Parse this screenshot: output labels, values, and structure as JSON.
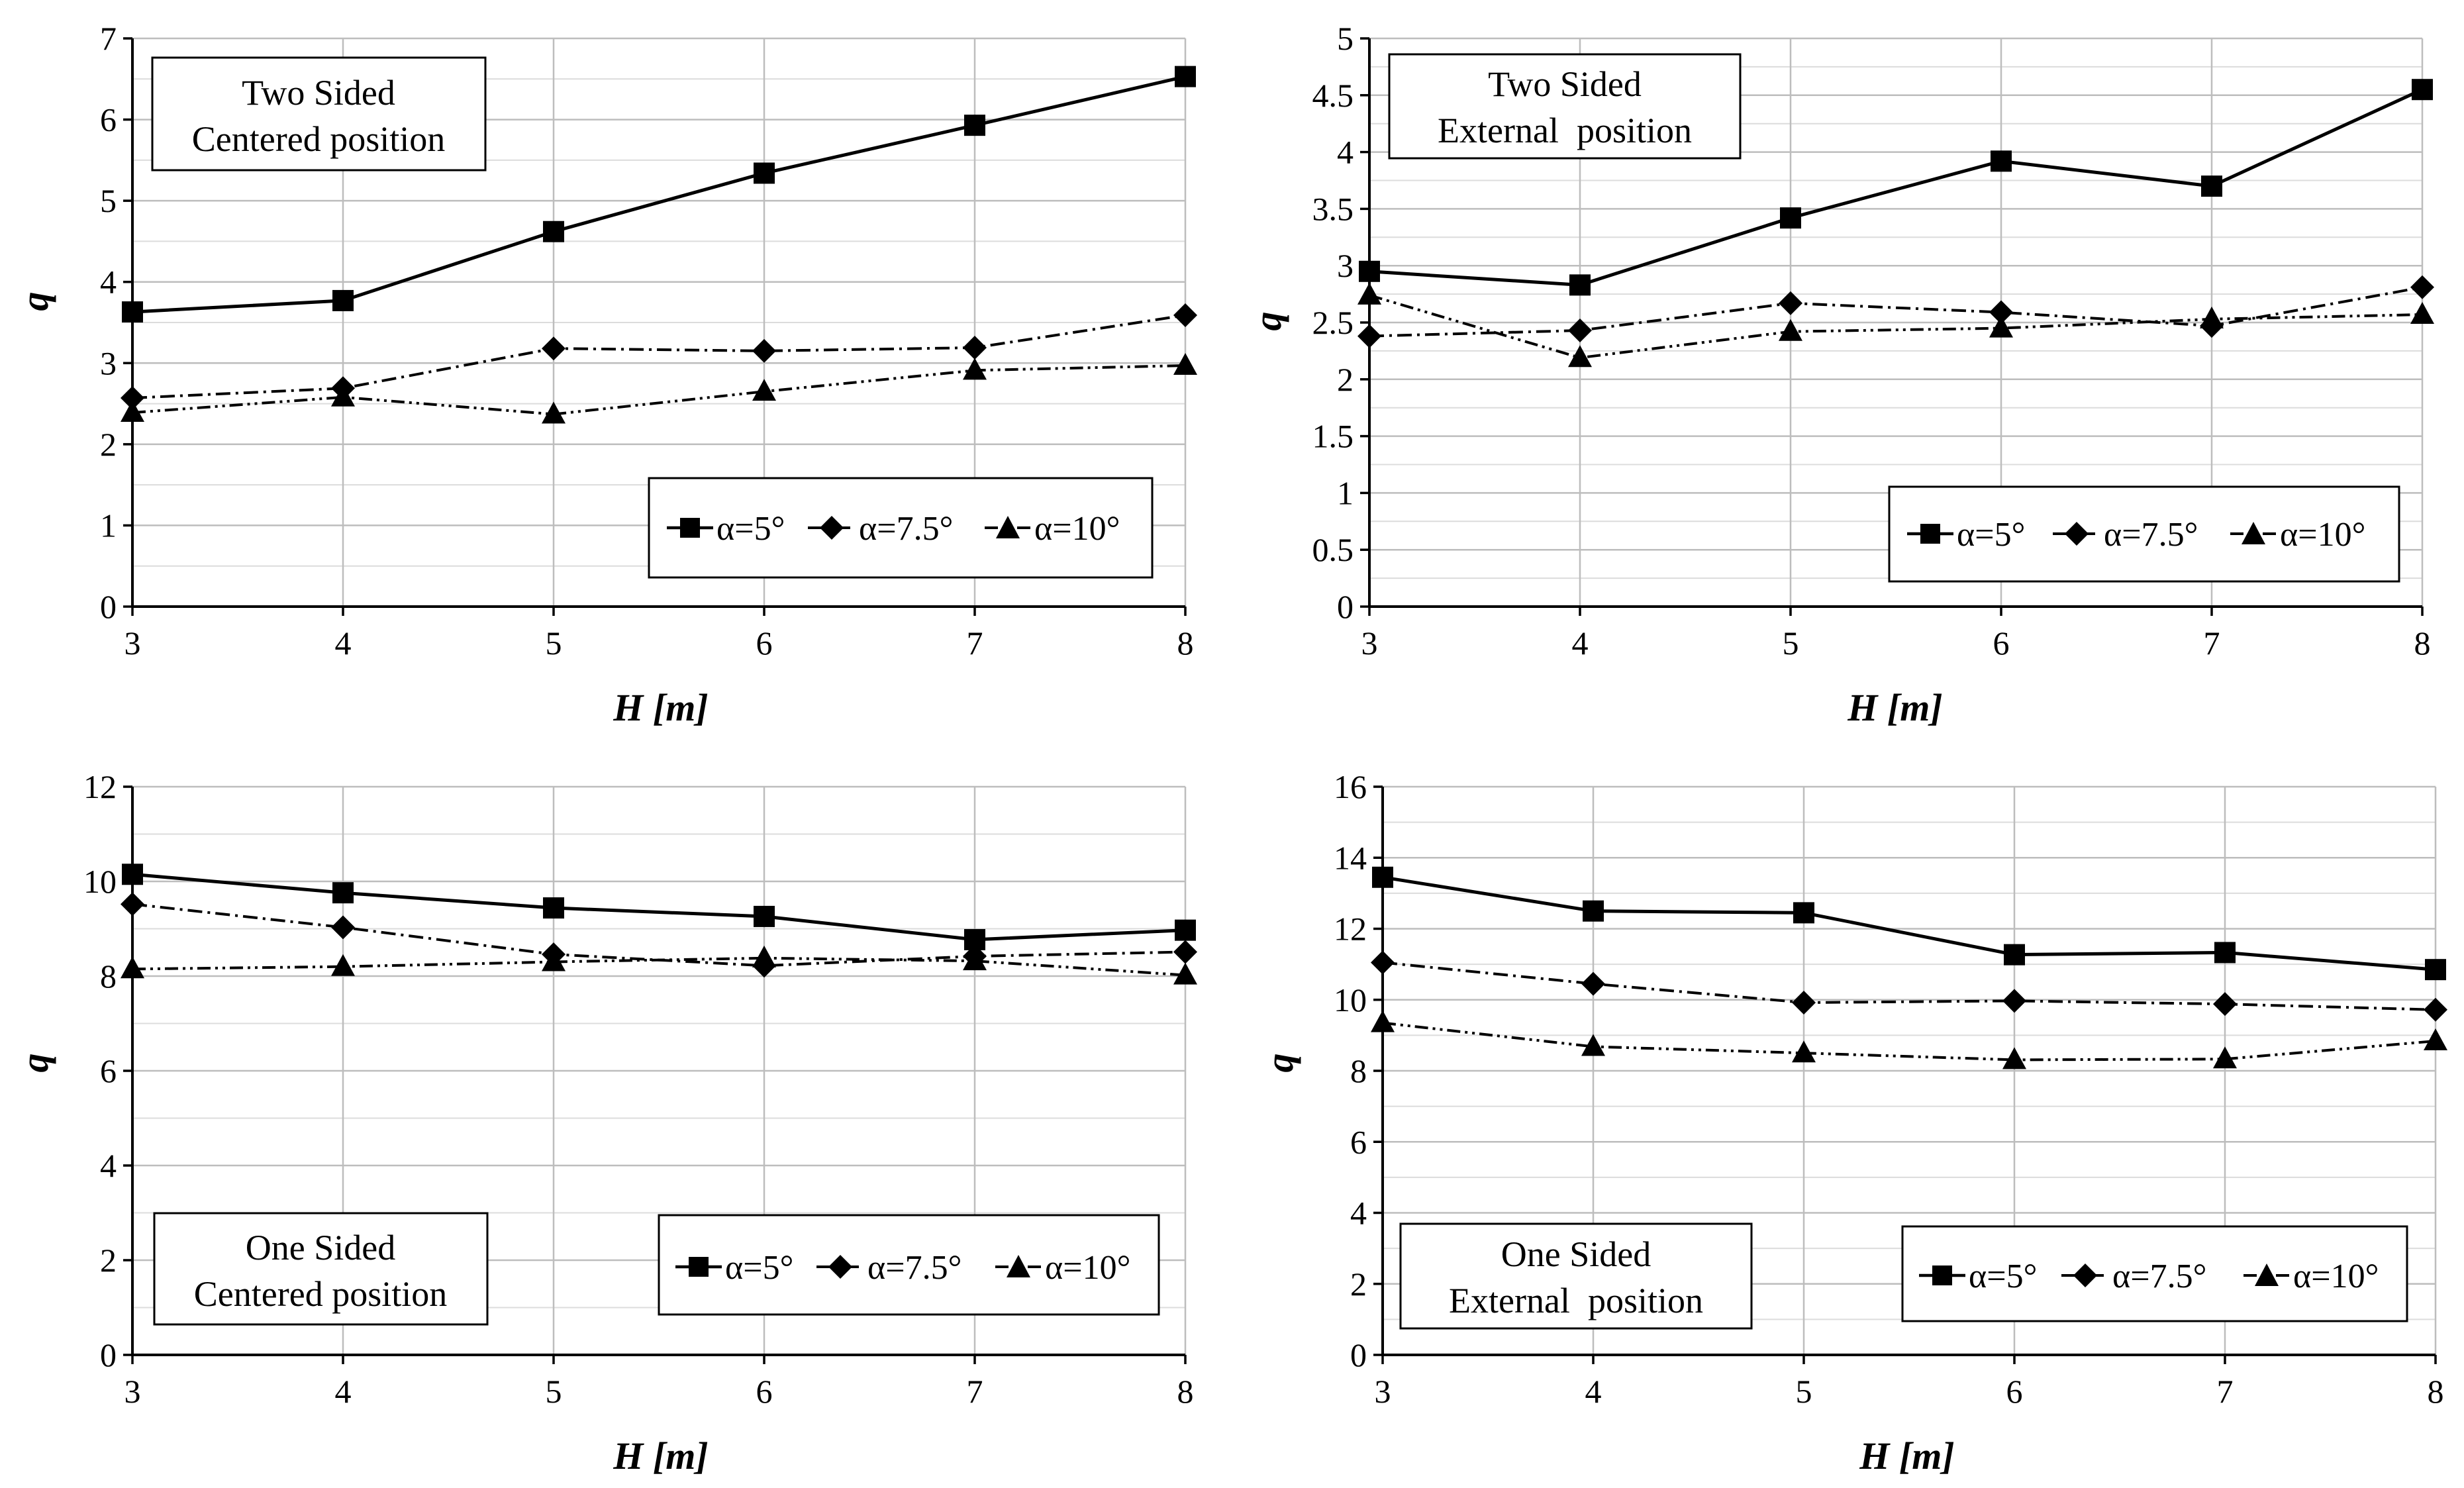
{
  "figure": {
    "line_color": "#000000",
    "grid_color": "#bdbdbd",
    "background": "#ffffff"
  },
  "chart_data": [
    {
      "type": "line",
      "title": [
        "Two Sided",
        "Centered position"
      ],
      "xlabel_var": "H",
      "xlabel_unit": "m",
      "ylabel": "q",
      "x": [
        3,
        4,
        5,
        6,
        7,
        8
      ],
      "xlim": [
        3,
        8
      ],
      "ylim": [
        0,
        7
      ],
      "ytick_step": 1,
      "minor_step": 0.5,
      "ytick_labels": [
        "0",
        "1",
        "2",
        "3",
        "4",
        "5",
        "6",
        "7"
      ],
      "xtick_labels": [
        "3",
        "4",
        "5",
        "6",
        "7",
        "8"
      ],
      "grid": true,
      "legend_position": "bottom-right",
      "title_position": "top-left",
      "series": [
        {
          "name": "α=5°",
          "marker": "square",
          "dash": "solid",
          "values": [
            3.63,
            3.77,
            4.62,
            5.34,
            5.93,
            6.53
          ]
        },
        {
          "name": "α=7.5°",
          "marker": "diamond",
          "dash": "dashdot",
          "values": [
            2.57,
            2.69,
            3.18,
            3.15,
            3.19,
            3.59
          ]
        },
        {
          "name": "α=10°",
          "marker": "triangle",
          "dash": "dashdotdot",
          "values": [
            2.39,
            2.58,
            2.37,
            2.65,
            2.91,
            2.97
          ]
        }
      ]
    },
    {
      "type": "line",
      "title": [
        "Two Sided",
        "External  position"
      ],
      "xlabel_var": "H",
      "xlabel_unit": "m",
      "ylabel": "q",
      "x": [
        3,
        4,
        5,
        6,
        7,
        8
      ],
      "xlim": [
        3,
        8
      ],
      "ylim": [
        0,
        5
      ],
      "ytick_step": 0.5,
      "minor_step": 0.25,
      "ytick_labels": [
        "0",
        "0.5",
        "1",
        "1.5",
        "2",
        "2.5",
        "3",
        "3.5",
        "4",
        "4.5",
        "5"
      ],
      "xtick_labels": [
        "3",
        "4",
        "5",
        "6",
        "7",
        "8"
      ],
      "grid": true,
      "legend_position": "bottom-right",
      "title_position": "top-left",
      "series": [
        {
          "name": "α=5°",
          "marker": "square",
          "dash": "solid",
          "values": [
            2.95,
            2.83,
            3.42,
            3.92,
            3.7,
            4.55
          ]
        },
        {
          "name": "α=7.5°",
          "marker": "diamond",
          "dash": "dashdot",
          "values": [
            2.38,
            2.43,
            2.67,
            2.59,
            2.47,
            2.81
          ]
        },
        {
          "name": "α=10°",
          "marker": "triangle",
          "dash": "dashdotdot",
          "values": [
            2.74,
            2.19,
            2.42,
            2.45,
            2.53,
            2.57
          ]
        }
      ]
    },
    {
      "type": "line",
      "title": [
        "One Sided",
        "Centered position"
      ],
      "xlabel_var": "H",
      "xlabel_unit": "m",
      "ylabel": "q",
      "x": [
        3,
        4,
        5,
        6,
        7,
        8
      ],
      "xlim": [
        3,
        8
      ],
      "ylim": [
        0,
        12
      ],
      "ytick_step": 2,
      "minor_step": 1,
      "ytick_labels": [
        "0",
        "2",
        "4",
        "6",
        "8",
        "10",
        "12"
      ],
      "xtick_labels": [
        "3",
        "4",
        "5",
        "6",
        "7",
        "8"
      ],
      "grid": true,
      "legend_position": "bottom-right",
      "title_position": "bottom-left",
      "series": [
        {
          "name": "α=5°",
          "marker": "square",
          "dash": "solid",
          "values": [
            10.15,
            9.76,
            9.44,
            9.26,
            8.77,
            8.97
          ]
        },
        {
          "name": "α=7.5°",
          "marker": "diamond",
          "dash": "dashdot",
          "values": [
            9.52,
            9.03,
            8.46,
            8.22,
            8.42,
            8.51
          ]
        },
        {
          "name": "α=10°",
          "marker": "triangle",
          "dash": "dashdotdot",
          "values": [
            8.15,
            8.2,
            8.3,
            8.38,
            8.32,
            8.02
          ]
        }
      ]
    },
    {
      "type": "line",
      "title": [
        "One Sided",
        "External  position"
      ],
      "xlabel_var": "H",
      "xlabel_unit": "m",
      "ylabel": "q",
      "x": [
        3,
        4,
        5,
        6,
        7,
        8
      ],
      "xlim": [
        3,
        8
      ],
      "ylim": [
        0,
        16
      ],
      "ytick_step": 2,
      "minor_step": 1,
      "ytick_labels": [
        "0",
        "2",
        "4",
        "6",
        "8",
        "10",
        "12",
        "14",
        "16"
      ],
      "xtick_labels": [
        "3",
        "4",
        "5",
        "6",
        "7",
        "8"
      ],
      "grid": true,
      "legend_position": "bottom-right",
      "title_position": "bottom-left",
      "series": [
        {
          "name": "α=5°",
          "marker": "square",
          "dash": "solid",
          "values": [
            13.45,
            12.5,
            12.45,
            11.27,
            11.33,
            10.85
          ]
        },
        {
          "name": "α=7.5°",
          "marker": "diamond",
          "dash": "dashdot",
          "values": [
            11.05,
            10.45,
            9.92,
            9.97,
            9.88,
            9.72
          ]
        },
        {
          "name": "α=10°",
          "marker": "triangle",
          "dash": "dashdotdot",
          "values": [
            9.35,
            8.68,
            8.5,
            8.31,
            8.33,
            8.84
          ]
        }
      ]
    }
  ]
}
